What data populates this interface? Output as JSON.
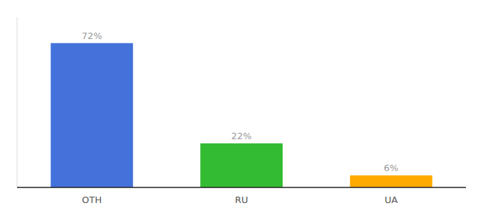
{
  "chart_data": {
    "type": "bar",
    "categories": [
      "OTH",
      "RU",
      "UA"
    ],
    "values": [
      72,
      22,
      6
    ],
    "value_labels": [
      "72%",
      "22%",
      "6%"
    ],
    "colors": [
      "#4472db",
      "#33bb33",
      "#ffaa00"
    ],
    "ylim": [
      0,
      85
    ],
    "data_labels": true,
    "tick_labels": "x",
    "grid": false
  }
}
